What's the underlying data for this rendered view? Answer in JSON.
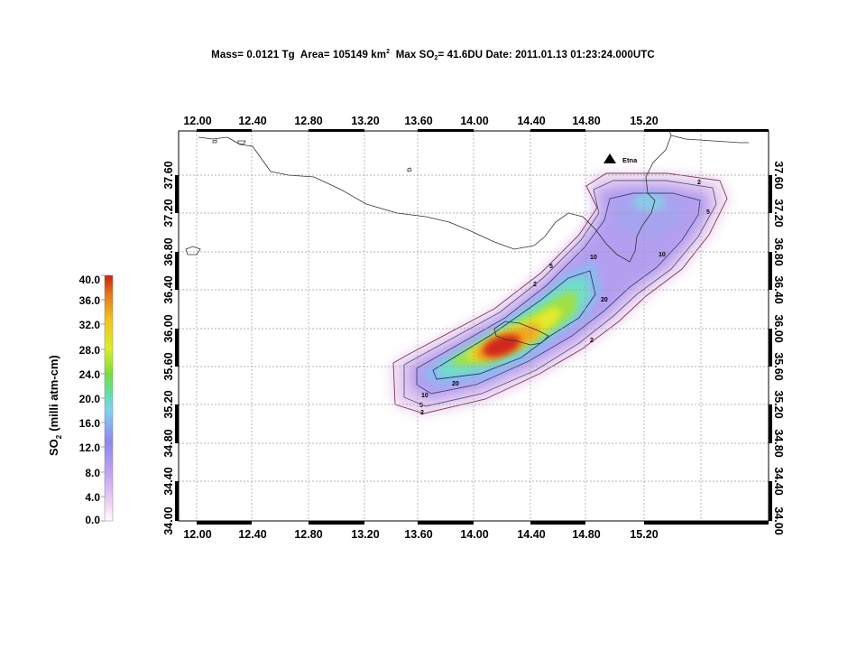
{
  "header": {
    "mass_label": "Mass=",
    "mass_value": "0.0121 Tg",
    "area_label": "Area=",
    "area_value": "105149 km",
    "area_sup": "2",
    "maxso2_label": "Max SO",
    "maxso2_sub": "2",
    "maxso2_value": "= 41.6DU",
    "date_label": "Date:",
    "date_value": "2011.01.13 01:23:24.000UTC"
  },
  "map": {
    "lon_ticks": [
      "12.00",
      "12.40",
      "12.80",
      "13.20",
      "13.60",
      "14.00",
      "14.40",
      "14.80",
      "15.20"
    ],
    "lat_ticks": [
      "34.00",
      "34.40",
      "34.80",
      "35.20",
      "35.60",
      "36.00",
      "36.40",
      "36.80",
      "37.20",
      "37.60"
    ],
    "volcano_label": "Etna",
    "contour_labels": [
      "2",
      "5",
      "10",
      "20"
    ]
  },
  "colorbar": {
    "title": "SO",
    "title_sub": "2",
    "title_units": "(milli atm-cm)",
    "ticks": [
      "40.0",
      "36.0",
      "32.0",
      "28.0",
      "24.0",
      "20.0",
      "16.0",
      "12.0",
      "8.0",
      "4.0",
      "0.0"
    ],
    "colors": [
      "#ffffff",
      "#f2d8f2",
      "#c8a6f2",
      "#8f86ec",
      "#82d0f2",
      "#5ee0a6",
      "#7cdc3c",
      "#d8ee2a",
      "#f0c420",
      "#e27a1a",
      "#cf1f12"
    ]
  }
}
